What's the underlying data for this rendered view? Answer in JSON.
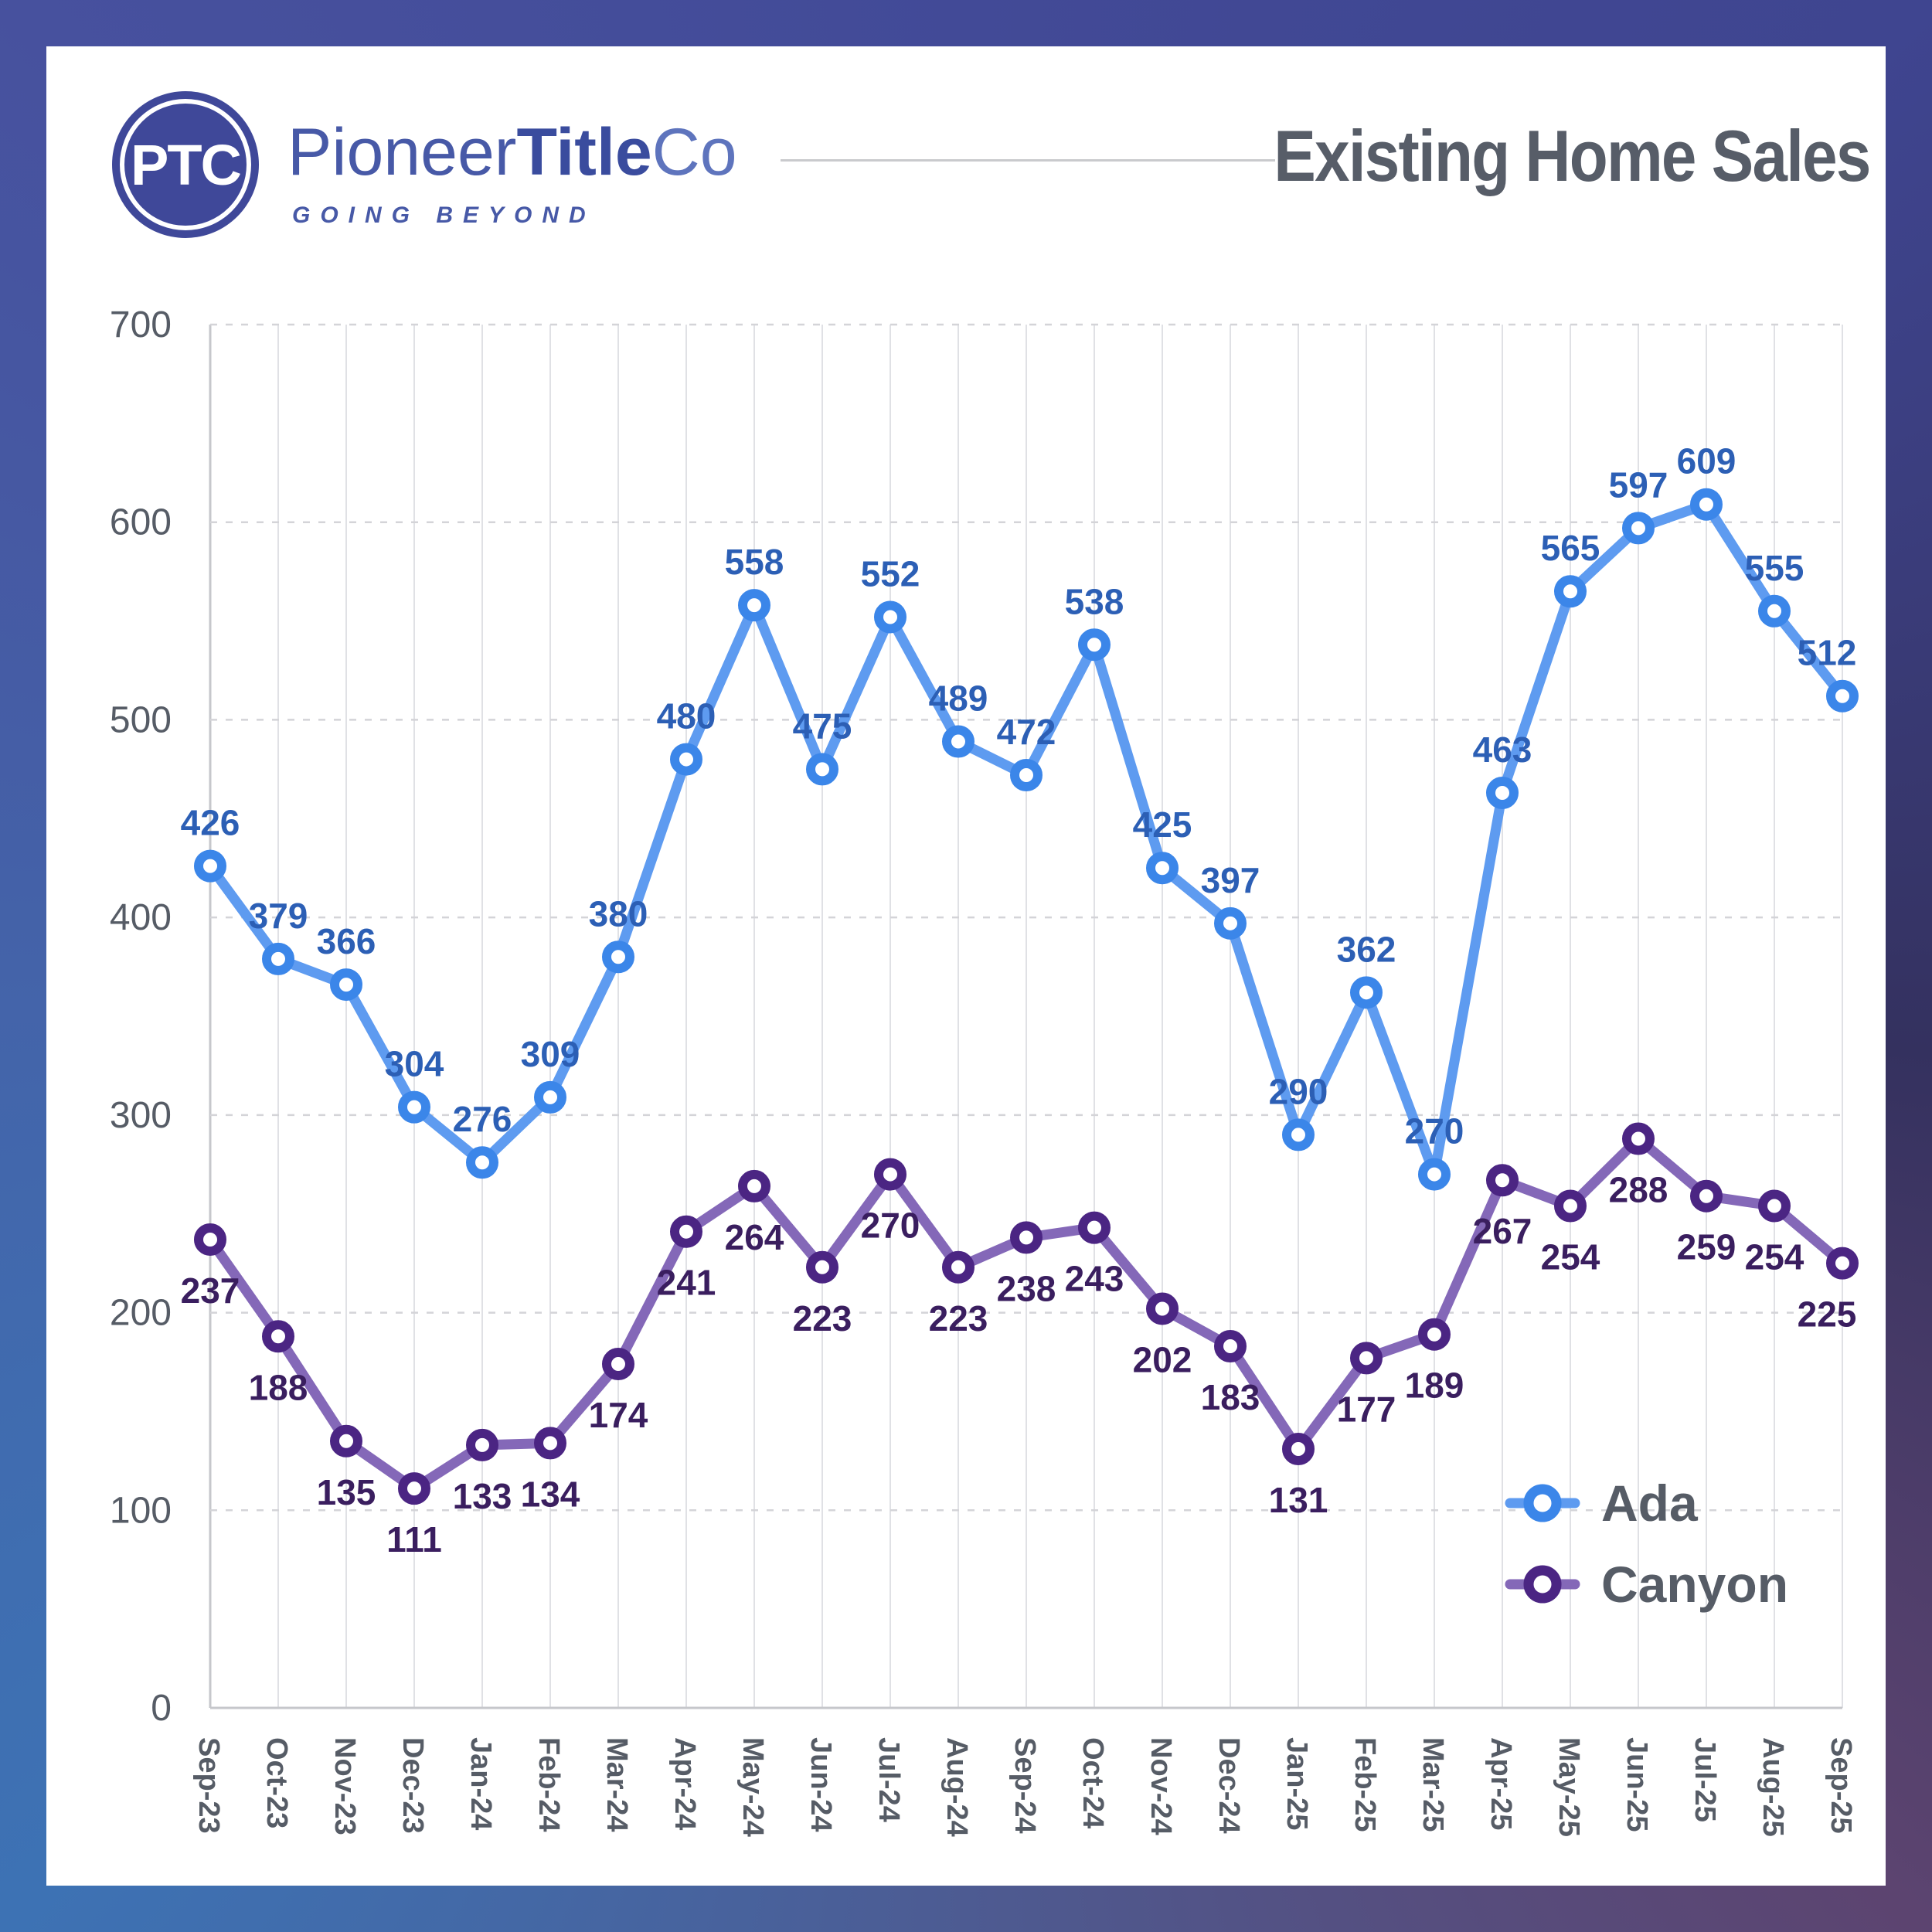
{
  "header": {
    "logo": {
      "monogram": "PTC",
      "brand_pioneer": "Pioneer",
      "brand_title": "Title",
      "brand_co": "Co",
      "tagline": "GOING BEYOND",
      "brand_color": "#3f4899"
    },
    "title": "Existing Home Sales"
  },
  "chart_data": {
    "type": "line",
    "title": "Existing Home Sales",
    "categories": [
      "Sep-23",
      "Oct-23",
      "Nov-23",
      "Dec-23",
      "Jan-24",
      "Feb-24",
      "Mar-24",
      "Apr-24",
      "May-24",
      "Jun-24",
      "Jul-24",
      "Aug-24",
      "Sep-24",
      "Oct-24",
      "Nov-24",
      "Dec-24",
      "Jan-25",
      "Feb-25",
      "Mar-25",
      "Apr-25",
      "May-25",
      "Jun-25",
      "Jul-25",
      "Aug-25",
      "Sep-25"
    ],
    "series": [
      {
        "name": "Ada",
        "values": [
          426,
          379,
          366,
          304,
          276,
          309,
          380,
          480,
          558,
          475,
          552,
          489,
          472,
          538,
          425,
          397,
          290,
          362,
          270,
          463,
          565,
          597,
          609,
          555,
          512
        ],
        "line_color": "#5e9bf0",
        "marker_color": "#3b86e9",
        "label_color": "#2c5fb5",
        "label_position": "above"
      },
      {
        "name": "Canyon",
        "values": [
          237,
          188,
          135,
          111,
          133,
          134,
          174,
          241,
          264,
          223,
          270,
          223,
          238,
          243,
          202,
          183,
          131,
          177,
          189,
          267,
          254,
          288,
          259,
          254,
          225
        ],
        "line_color": "#8468b8",
        "marker_color": "#4b2583",
        "label_color": "#3a1e5f",
        "label_position": "below"
      }
    ],
    "xlabel": "",
    "ylabel": "",
    "ylim": [
      0,
      700
    ],
    "yticks": [
      0,
      100,
      200,
      300,
      400,
      500,
      600,
      700
    ],
    "grid": "horizontal-dashed-vertical-solid",
    "legend_position": "bottom-right",
    "axis_text_color": "#565c66",
    "legend_text_color": "#565c66"
  }
}
